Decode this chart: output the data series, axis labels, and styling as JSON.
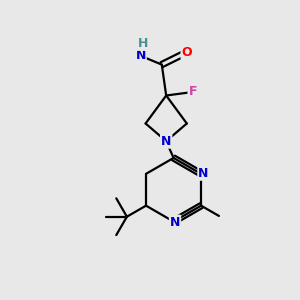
{
  "bg_color": "#e8e8e8",
  "atom_colors": {
    "C": "#000000",
    "N": "#0000cc",
    "O": "#ff0000",
    "F": "#cc44aa",
    "H": "#4a9090"
  },
  "bond_color": "#000000",
  "bond_width": 1.6,
  "figsize": [
    3.0,
    3.0
  ],
  "dpi": 100
}
